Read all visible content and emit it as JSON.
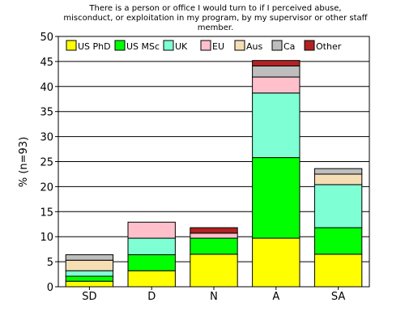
{
  "chart_data": {
    "type": "bar",
    "stacked": true,
    "title": "There is a person or office I would turn to if I perceived abuse, misconduct, or exploitation in my program, by my supervisor or other staff member.",
    "title_lines": [
      "There is a person or office I would turn to if I perceived abuse,",
      "misconduct, or exploitation in my program, by my supervisor or other staff",
      "member."
    ],
    "xlabel": "",
    "ylabel": "% (n=93)",
    "ylim": [
      0,
      50
    ],
    "yticks": [
      0,
      5,
      10,
      15,
      20,
      25,
      30,
      35,
      40,
      45,
      50
    ],
    "grid": "horizontal",
    "legend_position": "top",
    "categories": [
      "SD",
      "D",
      "N",
      "A",
      "SA"
    ],
    "series": [
      {
        "name": "US PhD",
        "color": "#ffff00",
        "values": [
          1.1,
          3.2,
          6.5,
          9.7,
          6.5
        ]
      },
      {
        "name": "US MSc",
        "color": "#00ff00",
        "values": [
          1.0,
          3.2,
          3.2,
          16.1,
          5.3
        ]
      },
      {
        "name": "UK",
        "color": "#7fffd4",
        "values": [
          1.1,
          3.3,
          0,
          12.9,
          8.6
        ]
      },
      {
        "name": "EU",
        "color": "#ffc0cb",
        "values": [
          0,
          3.2,
          1.0,
          3.2,
          0
        ]
      },
      {
        "name": "Aus",
        "color": "#f5deb3",
        "values": [
          2.1,
          0,
          0,
          0,
          2.1
        ]
      },
      {
        "name": "Ca",
        "color": "#bebebe",
        "values": [
          1.1,
          0,
          0,
          2.2,
          1.1
        ]
      },
      {
        "name": "Other",
        "color": "#b22222",
        "values": [
          0,
          0,
          1.1,
          1.1,
          0
        ]
      }
    ]
  }
}
